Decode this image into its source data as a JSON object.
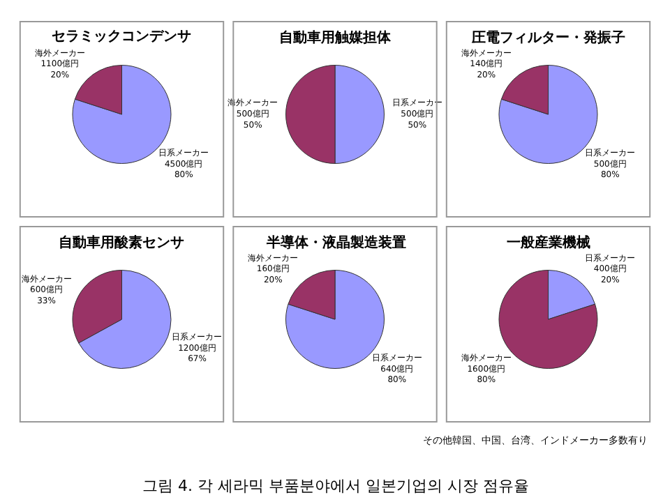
{
  "chart_data": [
    {
      "type": "pie",
      "title": "セラミックコンデンサ",
      "categories": [
        "日系メーカー",
        "海外メーカー"
      ],
      "values": [
        80,
        20
      ],
      "colors": [
        "#9999ff",
        "#993366"
      ],
      "value_labels": [
        "4500億円\n80%",
        "1100億円\n20%"
      ],
      "legend": false
    },
    {
      "type": "pie",
      "title": "自動車用触媒担体",
      "categories": [
        "日系メーカー",
        "海外メーカー"
      ],
      "values": [
        50,
        50
      ],
      "colors": [
        "#9999ff",
        "#993366"
      ],
      "value_labels": [
        "500億円\n50%",
        "500億円\n50%"
      ],
      "legend": false
    },
    {
      "type": "pie",
      "title": "圧電フィルター・発振子",
      "categories": [
        "日系メーカー",
        "海外メーカー"
      ],
      "values": [
        80,
        20
      ],
      "colors": [
        "#9999ff",
        "#993366"
      ],
      "value_labels": [
        "500億円\n80%",
        "140億円\n20%"
      ],
      "legend": false
    },
    {
      "type": "pie",
      "title": "自動車用酸素センサ",
      "categories": [
        "日系メーカー",
        "海外メーカー"
      ],
      "values": [
        67,
        33
      ],
      "colors": [
        "#9999ff",
        "#993366"
      ],
      "value_labels": [
        "1200億円\n67%",
        "600億円\n33%"
      ],
      "legend": false
    },
    {
      "type": "pie",
      "title": "半導体・液晶製造装置",
      "categories": [
        "日系メーカー",
        "海外メーカー"
      ],
      "values": [
        80,
        20
      ],
      "colors": [
        "#9999ff",
        "#993366"
      ],
      "value_labels": [
        "640億円\n80%",
        "160億円\n20%"
      ],
      "legend": false
    },
    {
      "type": "pie",
      "title": "一般産業機械",
      "categories": [
        "日系メーカー",
        "海外メーカー"
      ],
      "values": [
        20,
        80
      ],
      "colors": [
        "#9999ff",
        "#993366"
      ],
      "value_labels": [
        "400億円\n20%",
        "1600億円\n80%"
      ],
      "legend": false,
      "annotations": [
        "その他韓国、中国、台湾、インドメーカー多数有り"
      ]
    },
    {
      "type": "other",
      "annotations": [
        "그림 4. 각 세라믹 부품분야에서 일본기업의 시장 점유율"
      ]
    }
  ]
}
